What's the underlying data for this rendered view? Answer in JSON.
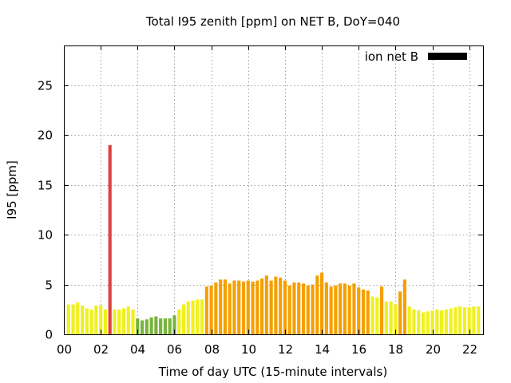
{
  "chart_data": {
    "type": "bar",
    "title": "Total I95 zenith [ppm] on NET B, DoY=040",
    "xlabel": "Time of day UTC (15-minute intervals)",
    "ylabel": "I95 [ppm]",
    "xlim": [
      0,
      22.75
    ],
    "ylim": [
      0,
      29
    ],
    "x_ticks": [
      "00",
      "02",
      "04",
      "06",
      "08",
      "10",
      "12",
      "14",
      "16",
      "18",
      "20",
      "22"
    ],
    "y_ticks": [
      "0",
      "5",
      "10",
      "15",
      "20",
      "25"
    ],
    "grid": true,
    "legend": {
      "position": "top-right",
      "entries": [
        {
          "label": "ion net B",
          "color": "#000000"
        }
      ]
    },
    "bar_width_hours": 0.18,
    "colors": {
      "yellow": "#f0f01e",
      "green": "#78b43c",
      "orange": "#f5a000",
      "red": "#e04040"
    },
    "bars": [
      {
        "x": 0.25,
        "value": 3.0,
        "color": "yellow"
      },
      {
        "x": 0.5,
        "value": 3.0,
        "color": "yellow"
      },
      {
        "x": 0.75,
        "value": 3.2,
        "color": "yellow"
      },
      {
        "x": 1.0,
        "value": 2.9,
        "color": "yellow"
      },
      {
        "x": 1.25,
        "value": 2.6,
        "color": "yellow"
      },
      {
        "x": 1.5,
        "value": 2.5,
        "color": "yellow"
      },
      {
        "x": 1.75,
        "value": 2.9,
        "color": "yellow"
      },
      {
        "x": 2.0,
        "value": 2.9,
        "color": "yellow"
      },
      {
        "x": 2.25,
        "value": 2.5,
        "color": "yellow"
      },
      {
        "x": 2.5,
        "value": 19.0,
        "color": "red"
      },
      {
        "x": 2.75,
        "value": 2.5,
        "color": "yellow"
      },
      {
        "x": 3.0,
        "value": 2.5,
        "color": "yellow"
      },
      {
        "x": 3.25,
        "value": 2.6,
        "color": "yellow"
      },
      {
        "x": 3.5,
        "value": 2.8,
        "color": "yellow"
      },
      {
        "x": 3.75,
        "value": 2.5,
        "color": "yellow"
      },
      {
        "x": 4.0,
        "value": 1.6,
        "color": "green"
      },
      {
        "x": 4.25,
        "value": 1.4,
        "color": "green"
      },
      {
        "x": 4.5,
        "value": 1.5,
        "color": "green"
      },
      {
        "x": 4.75,
        "value": 1.7,
        "color": "green"
      },
      {
        "x": 5.0,
        "value": 1.8,
        "color": "green"
      },
      {
        "x": 5.25,
        "value": 1.6,
        "color": "green"
      },
      {
        "x": 5.5,
        "value": 1.6,
        "color": "green"
      },
      {
        "x": 5.75,
        "value": 1.6,
        "color": "green"
      },
      {
        "x": 6.0,
        "value": 1.9,
        "color": "green"
      },
      {
        "x": 6.25,
        "value": 2.5,
        "color": "yellow"
      },
      {
        "x": 6.5,
        "value": 3.0,
        "color": "yellow"
      },
      {
        "x": 6.75,
        "value": 3.3,
        "color": "yellow"
      },
      {
        "x": 7.0,
        "value": 3.4,
        "color": "yellow"
      },
      {
        "x": 7.25,
        "value": 3.5,
        "color": "yellow"
      },
      {
        "x": 7.5,
        "value": 3.5,
        "color": "yellow"
      },
      {
        "x": 7.75,
        "value": 4.8,
        "color": "orange"
      },
      {
        "x": 8.0,
        "value": 4.9,
        "color": "orange"
      },
      {
        "x": 8.25,
        "value": 5.2,
        "color": "orange"
      },
      {
        "x": 8.5,
        "value": 5.5,
        "color": "orange"
      },
      {
        "x": 8.75,
        "value": 5.5,
        "color": "orange"
      },
      {
        "x": 9.0,
        "value": 5.1,
        "color": "orange"
      },
      {
        "x": 9.25,
        "value": 5.4,
        "color": "orange"
      },
      {
        "x": 9.5,
        "value": 5.4,
        "color": "orange"
      },
      {
        "x": 9.75,
        "value": 5.3,
        "color": "orange"
      },
      {
        "x": 10.0,
        "value": 5.4,
        "color": "orange"
      },
      {
        "x": 10.25,
        "value": 5.3,
        "color": "orange"
      },
      {
        "x": 10.5,
        "value": 5.4,
        "color": "orange"
      },
      {
        "x": 10.75,
        "value": 5.6,
        "color": "orange"
      },
      {
        "x": 11.0,
        "value": 5.9,
        "color": "orange"
      },
      {
        "x": 11.25,
        "value": 5.4,
        "color": "orange"
      },
      {
        "x": 11.5,
        "value": 5.8,
        "color": "orange"
      },
      {
        "x": 11.75,
        "value": 5.7,
        "color": "orange"
      },
      {
        "x": 12.0,
        "value": 5.4,
        "color": "orange"
      },
      {
        "x": 12.25,
        "value": 4.9,
        "color": "orange"
      },
      {
        "x": 12.5,
        "value": 5.2,
        "color": "orange"
      },
      {
        "x": 12.75,
        "value": 5.2,
        "color": "orange"
      },
      {
        "x": 13.0,
        "value": 5.1,
        "color": "orange"
      },
      {
        "x": 13.25,
        "value": 4.9,
        "color": "orange"
      },
      {
        "x": 13.5,
        "value": 5.0,
        "color": "orange"
      },
      {
        "x": 13.75,
        "value": 5.9,
        "color": "orange"
      },
      {
        "x": 14.0,
        "value": 6.2,
        "color": "orange"
      },
      {
        "x": 14.25,
        "value": 5.2,
        "color": "orange"
      },
      {
        "x": 14.5,
        "value": 4.8,
        "color": "orange"
      },
      {
        "x": 14.75,
        "value": 4.9,
        "color": "orange"
      },
      {
        "x": 15.0,
        "value": 5.1,
        "color": "orange"
      },
      {
        "x": 15.25,
        "value": 5.1,
        "color": "orange"
      },
      {
        "x": 15.5,
        "value": 4.9,
        "color": "orange"
      },
      {
        "x": 15.75,
        "value": 5.1,
        "color": "orange"
      },
      {
        "x": 16.0,
        "value": 4.7,
        "color": "orange"
      },
      {
        "x": 16.25,
        "value": 4.5,
        "color": "orange"
      },
      {
        "x": 16.5,
        "value": 4.4,
        "color": "orange"
      },
      {
        "x": 16.75,
        "value": 3.8,
        "color": "yellow"
      },
      {
        "x": 17.0,
        "value": 3.7,
        "color": "yellow"
      },
      {
        "x": 17.25,
        "value": 4.8,
        "color": "orange"
      },
      {
        "x": 17.5,
        "value": 3.3,
        "color": "yellow"
      },
      {
        "x": 17.75,
        "value": 3.3,
        "color": "yellow"
      },
      {
        "x": 18.0,
        "value": 3.0,
        "color": "yellow"
      },
      {
        "x": 18.25,
        "value": 4.3,
        "color": "orange"
      },
      {
        "x": 18.5,
        "value": 5.5,
        "color": "orange"
      },
      {
        "x": 18.75,
        "value": 2.8,
        "color": "yellow"
      },
      {
        "x": 19.0,
        "value": 2.5,
        "color": "yellow"
      },
      {
        "x": 19.25,
        "value": 2.4,
        "color": "yellow"
      },
      {
        "x": 19.5,
        "value": 2.2,
        "color": "yellow"
      },
      {
        "x": 19.75,
        "value": 2.3,
        "color": "yellow"
      },
      {
        "x": 20.0,
        "value": 2.4,
        "color": "yellow"
      },
      {
        "x": 20.25,
        "value": 2.5,
        "color": "yellow"
      },
      {
        "x": 20.5,
        "value": 2.4,
        "color": "yellow"
      },
      {
        "x": 20.75,
        "value": 2.5,
        "color": "yellow"
      },
      {
        "x": 21.0,
        "value": 2.6,
        "color": "yellow"
      },
      {
        "x": 21.25,
        "value": 2.7,
        "color": "yellow"
      },
      {
        "x": 21.5,
        "value": 2.8,
        "color": "yellow"
      },
      {
        "x": 21.75,
        "value": 2.7,
        "color": "yellow"
      },
      {
        "x": 22.0,
        "value": 2.7,
        "color": "yellow"
      },
      {
        "x": 22.25,
        "value": 2.8,
        "color": "yellow"
      },
      {
        "x": 22.5,
        "value": 2.8,
        "color": "yellow"
      }
    ]
  }
}
